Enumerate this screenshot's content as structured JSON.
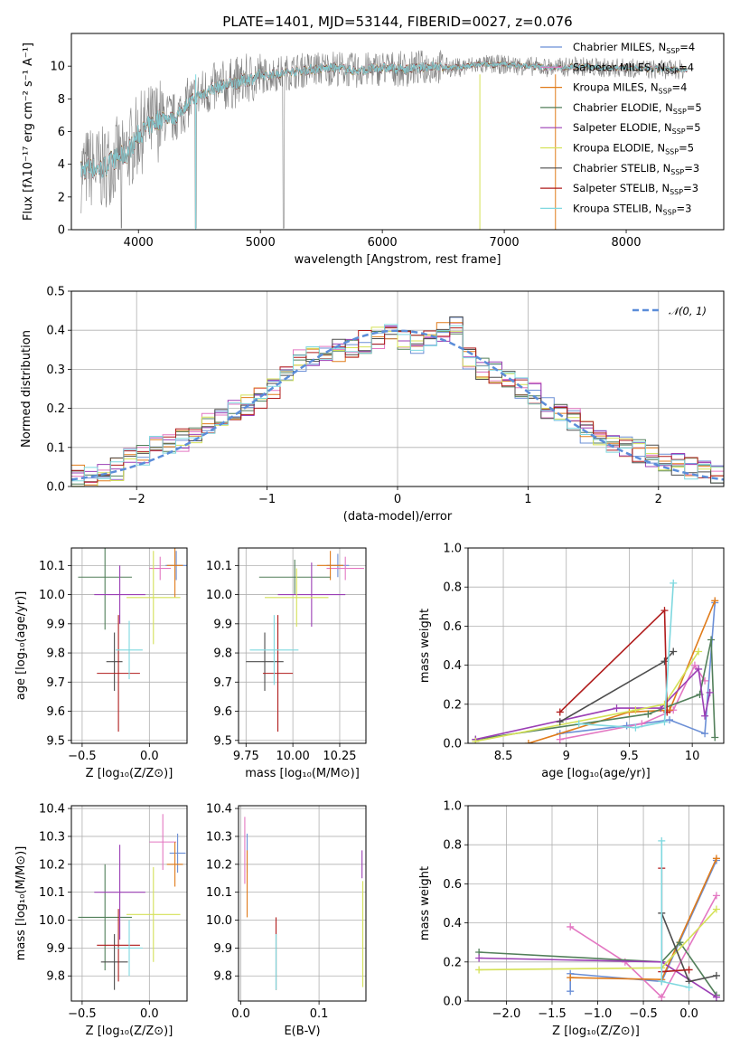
{
  "figure": {
    "title": "PLATE=1401, MJD=53144, FIBERID=0027, z=0.076"
  },
  "chart_data": [
    {
      "id": "spectrum",
      "type": "line",
      "xlabel": "wavelength [Angstrom, rest frame]",
      "ylabel": "Flux [fλ10⁻¹⁷ erg cm⁻² s⁻¹ A⁻¹]",
      "xlim": [
        3450,
        8800
      ],
      "ylim": [
        0,
        12
      ],
      "x_ticks": [
        4000,
        5000,
        6000,
        7000,
        8000
      ],
      "y_ticks": [
        0,
        2,
        4,
        6,
        8,
        10
      ],
      "grid": false,
      "legend_position": "top-right",
      "data": {
        "x": [
          3530,
          3600,
          3700,
          3800,
          3900,
          4000,
          4100,
          4200,
          4300,
          4400,
          4500,
          4600,
          4800,
          5000,
          5200,
          5400,
          5600,
          5800,
          6000,
          6200,
          6400,
          6600,
          6800,
          7000,
          7200,
          7400,
          7600,
          7800,
          8000,
          8200,
          8500
        ],
        "y": [
          3.6,
          3.8,
          3.7,
          4.3,
          4.6,
          5.8,
          6.4,
          6.9,
          6.8,
          7.7,
          8.2,
          8.6,
          9.0,
          9.4,
          9.6,
          9.8,
          9.9,
          9.7,
          9.9,
          9.8,
          10.0,
          9.9,
          10.1,
          10.1,
          10.0,
          9.9,
          10.0,
          9.9,
          9.9,
          9.8,
          9.8
        ]
      },
      "observed_color": "#808080",
      "series": [
        {
          "name": "Chabrier MILES, N",
          "sub": "SSP",
          "suffix": "=4",
          "color": "#6b8fd6"
        },
        {
          "name": "Salpeter MILES, N",
          "sub": "SSP",
          "suffix": "=4",
          "color": "#e377c2"
        },
        {
          "name": "Kroupa MILES, N",
          "sub": "SSP",
          "suffix": "=4",
          "color": "#e07b1a"
        },
        {
          "name": "Chabrier ELODIE, N",
          "sub": "SSP",
          "suffix": "=5",
          "color": "#527f5a"
        },
        {
          "name": "Salpeter ELODIE, N",
          "sub": "SSP",
          "suffix": "=5",
          "color": "#9b3fb5"
        },
        {
          "name": "Kroupa ELODIE, N",
          "sub": "SSP",
          "suffix": "=5",
          "color": "#d4e157"
        },
        {
          "name": "Chabrier STELIB, N",
          "sub": "SSP",
          "suffix": "=3",
          "color": "#4d4d4d"
        },
        {
          "name": "Salpeter STELIB, N",
          "sub": "SSP",
          "suffix": "=3",
          "color": "#b01c1c"
        },
        {
          "name": "Kroupa STELIB, N",
          "sub": "SSP",
          "suffix": "=3",
          "color": "#7fd8df"
        }
      ]
    },
    {
      "id": "residuals",
      "type": "line",
      "xlabel": "(data-model)/error",
      "ylabel": "Normed distribution",
      "xlim": [
        -2.5,
        2.5
      ],
      "ylim": [
        0,
        0.5
      ],
      "x_ticks": [
        -2,
        -1,
        0,
        1,
        2
      ],
      "y_ticks": [
        0.0,
        0.1,
        0.2,
        0.3,
        0.4,
        0.5
      ],
      "grid": true,
      "legend_position": "top-right",
      "reference_label": "𝒩(0, 1)",
      "reference_color": "#5b8dd9",
      "bin_width": 0.1,
      "histogram_centers": [
        -2.45,
        -2.35,
        -2.25,
        -2.15,
        -2.05,
        -1.95,
        -1.85,
        -1.75,
        -1.65,
        -1.55,
        -1.45,
        -1.35,
        -1.25,
        -1.15,
        -1.05,
        -0.95,
        -0.85,
        -0.75,
        -0.65,
        -0.55,
        -0.45,
        -0.35,
        -0.25,
        -0.15,
        -0.05,
        0.05,
        0.15,
        0.25,
        0.35,
        0.45,
        0.55,
        0.65,
        0.75,
        0.85,
        0.95,
        1.05,
        1.15,
        1.25,
        1.35,
        1.45,
        1.55,
        1.65,
        1.75,
        1.85,
        1.95,
        2.05,
        2.15,
        2.25,
        2.35,
        2.45
      ],
      "histogram_values": [
        0.03,
        0.025,
        0.035,
        0.045,
        0.07,
        0.08,
        0.1,
        0.11,
        0.12,
        0.13,
        0.16,
        0.18,
        0.2,
        0.21,
        0.23,
        0.25,
        0.28,
        0.32,
        0.33,
        0.34,
        0.35,
        0.36,
        0.37,
        0.38,
        0.39,
        0.38,
        0.37,
        0.38,
        0.39,
        0.42,
        0.33,
        0.3,
        0.29,
        0.27,
        0.25,
        0.24,
        0.2,
        0.18,
        0.17,
        0.14,
        0.13,
        0.11,
        0.1,
        0.09,
        0.08,
        0.065,
        0.055,
        0.045,
        0.035,
        0.035
      ]
    },
    {
      "id": "age_vs_Z",
      "type": "scatter",
      "xlabel": "Z [log₁₀(Z/Z⊙)]",
      "ylabel": "age  [log₁₀(age/yr)]",
      "xlim": [
        -0.58,
        0.28
      ],
      "ylim": [
        9.49,
        10.16
      ],
      "x_ticks": [
        -0.5,
        0.0
      ],
      "x_tick_labels": [
        "−0.5",
        "0.0"
      ],
      "y_ticks": [
        9.5,
        9.6,
        9.7,
        9.8,
        9.9,
        10.0,
        10.1
      ],
      "grid": true,
      "points": [
        {
          "x": 0.2,
          "y": 10.1,
          "xerr": 0.08,
          "yerr": 0.05,
          "color": "#6b8fd6"
        },
        {
          "x": 0.08,
          "y": 10.09,
          "xerr": 0.08,
          "yerr": 0.04,
          "color": "#e377c2"
        },
        {
          "x": 0.19,
          "y": 10.1,
          "xerr": 0.06,
          "yerr": 0.11,
          "color": "#e07b1a"
        },
        {
          "x": -0.33,
          "y": 10.06,
          "xerr": 0.2,
          "yerr": 0.18,
          "color": "#527f5a"
        },
        {
          "x": -0.22,
          "y": 10.0,
          "xerr": 0.19,
          "yerr": 0.1,
          "color": "#9b3fb5"
        },
        {
          "x": 0.03,
          "y": 9.99,
          "xerr": 0.2,
          "yerr": 0.16,
          "color": "#d4e157"
        },
        {
          "x": -0.26,
          "y": 9.77,
          "xerr": 0.06,
          "yerr": 0.1,
          "color": "#4d4d4d"
        },
        {
          "x": -0.23,
          "y": 9.73,
          "xerr": 0.16,
          "yerr": 0.2,
          "color": "#b01c1c"
        },
        {
          "x": -0.15,
          "y": 9.81,
          "xerr": 0.1,
          "yerr": 0.1,
          "color": "#7fd8df"
        }
      ]
    },
    {
      "id": "age_vs_mass",
      "type": "scatter",
      "xlabel": "mass [log₁₀(M/M⊙)]",
      "ylabel": "",
      "xlim": [
        9.71,
        10.39
      ],
      "ylim": [
        9.49,
        10.16
      ],
      "x_ticks": [
        9.75,
        10.0,
        10.25
      ],
      "x_tick_labels": [
        "9.75",
        "10.00",
        "10.25"
      ],
      "y_ticks": [
        9.5,
        9.6,
        9.7,
        9.8,
        9.9,
        10.0,
        10.1
      ],
      "grid": true,
      "points": [
        {
          "x": 10.24,
          "y": 10.1,
          "xerr": 0.06,
          "yerr": 0.04,
          "color": "#6b8fd6"
        },
        {
          "x": 10.28,
          "y": 10.09,
          "xerr": 0.1,
          "yerr": 0.04,
          "color": "#e377c2"
        },
        {
          "x": 10.2,
          "y": 10.1,
          "xerr": 0.07,
          "yerr": 0.05,
          "color": "#e07b1a"
        },
        {
          "x": 10.01,
          "y": 10.06,
          "xerr": 0.19,
          "yerr": 0.06,
          "color": "#527f5a"
        },
        {
          "x": 10.1,
          "y": 10.0,
          "xerr": 0.18,
          "yerr": 0.11,
          "color": "#9b3fb5"
        },
        {
          "x": 10.02,
          "y": 9.99,
          "xerr": 0.17,
          "yerr": 0.1,
          "color": "#d4e157"
        },
        {
          "x": 9.85,
          "y": 9.77,
          "xerr": 0.1,
          "yerr": 0.1,
          "color": "#4d4d4d"
        },
        {
          "x": 9.92,
          "y": 9.73,
          "xerr": 0.08,
          "yerr": 0.2,
          "color": "#b01c1c"
        },
        {
          "x": 9.9,
          "y": 9.81,
          "xerr": 0.13,
          "yerr": 0.12,
          "color": "#7fd8df"
        }
      ]
    },
    {
      "id": "weight_vs_age",
      "type": "line",
      "xlabel": "age  [log₁₀(age/yr)]",
      "ylabel": "mass weight",
      "xlim": [
        8.22,
        10.25
      ],
      "ylim": [
        0,
        1.0
      ],
      "x_ticks": [
        8.5,
        9.0,
        9.5,
        10.0
      ],
      "y_ticks": [
        0.0,
        0.2,
        0.4,
        0.6,
        0.8,
        1.0
      ],
      "grid": true,
      "series": [
        {
          "color": "#6b8fd6",
          "x": [
            8.95,
            9.48,
            9.82,
            10.1,
            10.18
          ],
          "y": [
            0.05,
            0.09,
            0.12,
            0.05,
            0.72
          ]
        },
        {
          "color": "#e377c2",
          "x": [
            8.95,
            9.6,
            9.85,
            10.02,
            10.1
          ],
          "y": [
            0.02,
            0.1,
            0.17,
            0.4,
            0.32
          ]
        },
        {
          "color": "#e07b1a",
          "x": [
            8.7,
            9.5,
            9.82,
            10.18
          ],
          "y": [
            0.0,
            0.16,
            0.17,
            0.73
          ]
        },
        {
          "color": "#527f5a",
          "x": [
            8.28,
            9.65,
            10.06,
            10.15,
            10.18
          ],
          "y": [
            0.02,
            0.15,
            0.25,
            0.53,
            0.03
          ]
        },
        {
          "color": "#9b3fb5",
          "x": [
            8.28,
            9.4,
            9.75,
            10.05,
            10.1,
            10.14
          ],
          "y": [
            0.02,
            0.18,
            0.18,
            0.38,
            0.14,
            0.26
          ]
        },
        {
          "color": "#d4e157",
          "x": [
            8.28,
            9.55,
            9.78,
            10.05
          ],
          "y": [
            0.01,
            0.17,
            0.2,
            0.47
          ]
        },
        {
          "color": "#4d4d4d",
          "x": [
            8.95,
            9.78,
            9.85
          ],
          "y": [
            0.11,
            0.42,
            0.47
          ]
        },
        {
          "color": "#b01c1c",
          "x": [
            8.95,
            9.78,
            9.8
          ],
          "y": [
            0.16,
            0.68,
            0.16
          ]
        },
        {
          "color": "#7fd8df",
          "x": [
            9.1,
            9.55,
            9.78,
            9.85
          ],
          "y": [
            0.1,
            0.08,
            0.11,
            0.82
          ]
        }
      ]
    },
    {
      "id": "mass_vs_Z",
      "type": "scatter",
      "xlabel": "Z [log₁₀(Z/Z⊙)]",
      "ylabel": "mass [log₁₀(M/M⊙)]",
      "xlim": [
        -0.58,
        0.28
      ],
      "ylim": [
        9.71,
        10.41
      ],
      "x_ticks": [
        -0.5,
        0.0
      ],
      "x_tick_labels": [
        "−0.5",
        "0.0"
      ],
      "y_ticks": [
        9.8,
        9.9,
        10.0,
        10.1,
        10.2,
        10.3,
        10.4
      ],
      "grid": true,
      "points": [
        {
          "x": 0.21,
          "y": 10.24,
          "xerr": 0.06,
          "yerr": 0.07,
          "color": "#6b8fd6"
        },
        {
          "x": 0.1,
          "y": 10.28,
          "xerr": 0.1,
          "yerr": 0.1,
          "color": "#e377c2"
        },
        {
          "x": 0.19,
          "y": 10.2,
          "xerr": 0.06,
          "yerr": 0.08,
          "color": "#e07b1a"
        },
        {
          "x": -0.33,
          "y": 10.01,
          "xerr": 0.2,
          "yerr": 0.19,
          "color": "#527f5a"
        },
        {
          "x": -0.22,
          "y": 10.1,
          "xerr": 0.19,
          "yerr": 0.17,
          "color": "#9b3fb5"
        },
        {
          "x": 0.03,
          "y": 10.02,
          "xerr": 0.2,
          "yerr": 0.17,
          "color": "#d4e157"
        },
        {
          "x": -0.26,
          "y": 9.85,
          "xerr": 0.1,
          "yerr": 0.1,
          "color": "#4d4d4d"
        },
        {
          "x": -0.23,
          "y": 9.91,
          "xerr": 0.16,
          "yerr": 0.13,
          "color": "#b01c1c"
        },
        {
          "x": -0.15,
          "y": 9.9,
          "xerr": 0.1,
          "yerr": 0.1,
          "color": "#7fd8df"
        }
      ]
    },
    {
      "id": "mass_vs_ebv",
      "type": "scatter",
      "xlabel": "E(B-V)",
      "ylabel": "",
      "xlim": [
        -0.003,
        0.16
      ],
      "ylim": [
        9.71,
        10.41
      ],
      "x_ticks": [
        0.0,
        0.1
      ],
      "x_tick_labels": [
        "0.0",
        "0.1"
      ],
      "y_ticks": [
        9.8,
        9.9,
        10.0,
        10.1,
        10.2,
        10.3,
        10.4
      ],
      "grid": true,
      "points": [
        {
          "x": 0.008,
          "y": 10.24,
          "xerr": 0,
          "yerr": 0.07,
          "color": "#6b8fd6"
        },
        {
          "x": 0.005,
          "y": 10.25,
          "xerr": 0,
          "yerr": 0.12,
          "color": "#e377c2"
        },
        {
          "x": 0.008,
          "y": 10.13,
          "xerr": 0,
          "yerr": 0.12,
          "color": "#e07b1a"
        },
        {
          "x": 0.045,
          "y": 9.85,
          "xerr": 0,
          "yerr": 0.1,
          "color": "#527f5a"
        },
        {
          "x": 0.155,
          "y": 10.2,
          "xerr": 0,
          "yerr": 0.05,
          "color": "#9b3fb5"
        },
        {
          "x": 0.156,
          "y": 9.95,
          "xerr": 0,
          "yerr": 0.19,
          "color": "#d4e157"
        },
        {
          "x": 0.045,
          "y": 9.88,
          "xerr": 0,
          "yerr": 0.13,
          "color": "#b01c1c"
        },
        {
          "x": 0.045,
          "y": 9.85,
          "xerr": 0,
          "yerr": 0.1,
          "color": "#7fd8df"
        }
      ]
    },
    {
      "id": "weight_vs_Z",
      "type": "line",
      "xlabel": "Z [log₁₀(Z/Z⊙)]",
      "ylabel": "mass weight",
      "xlim": [
        -2.42,
        0.38
      ],
      "ylim": [
        0,
        1.0
      ],
      "x_ticks": [
        -2.0,
        -1.5,
        -1.0,
        -0.5,
        0.0
      ],
      "x_tick_labels": [
        "−2.0",
        "−1.5",
        "−1.0",
        "−0.5",
        "0.0"
      ],
      "y_ticks": [
        0.0,
        0.2,
        0.4,
        0.6,
        0.8,
        1.0
      ],
      "grid": true,
      "series": [
        {
          "color": "#6b8fd6",
          "x": [
            -1.3,
            -1.3,
            -0.3,
            0.3
          ],
          "y": [
            0.05,
            0.14,
            0.1,
            0.72
          ]
        },
        {
          "color": "#e377c2",
          "x": [
            -1.3,
            -0.7,
            -0.3,
            0.3
          ],
          "y": [
            0.38,
            0.2,
            0.02,
            0.54
          ]
        },
        {
          "color": "#e07b1a",
          "x": [
            -1.3,
            -0.3,
            0.3
          ],
          "y": [
            0.12,
            0.11,
            0.73
          ]
        },
        {
          "color": "#527f5a",
          "x": [
            -2.3,
            -0.3,
            -0.1,
            0.3
          ],
          "y": [
            0.25,
            0.2,
            0.3,
            0.03
          ]
        },
        {
          "color": "#9b3fb5",
          "x": [
            -2.3,
            -0.3,
            0.3
          ],
          "y": [
            0.22,
            0.2,
            0.02
          ]
        },
        {
          "color": "#d4e157",
          "x": [
            -2.3,
            -0.3,
            0.3
          ],
          "y": [
            0.16,
            0.17,
            0.47
          ]
        },
        {
          "color": "#4d4d4d",
          "x": [
            -0.3,
            0.0,
            0.3
          ],
          "y": [
            0.45,
            0.1,
            0.13
          ]
        },
        {
          "color": "#b01c1c",
          "x": [
            -0.3,
            -0.3,
            0.0
          ],
          "y": [
            0.68,
            0.15,
            0.16
          ]
        },
        {
          "color": "#7fd8df",
          "x": [
            -0.3,
            -0.3,
            0.0
          ],
          "y": [
            0.82,
            0.1,
            0.07
          ]
        }
      ]
    }
  ]
}
